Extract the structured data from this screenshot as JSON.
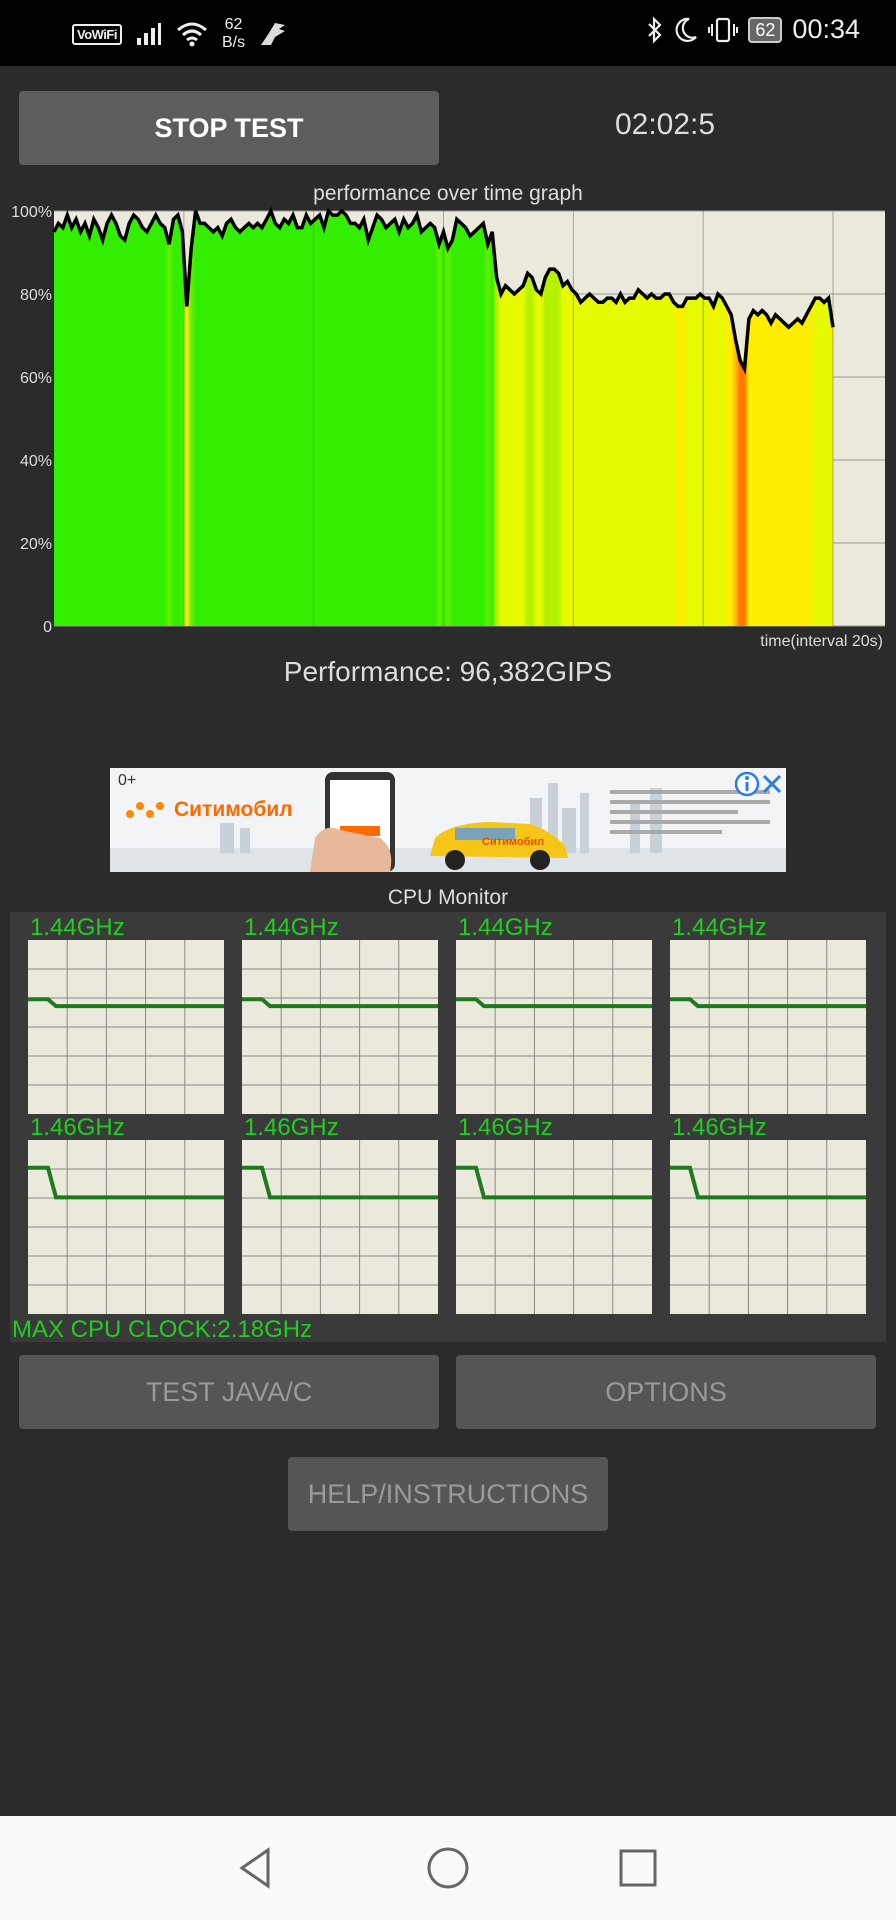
{
  "status_bar": {
    "vowifi": "VoWiFi",
    "net_speed_value": "62",
    "net_speed_unit": "B/s",
    "battery": "62",
    "time": "00:34"
  },
  "toolbar": {
    "stop_label": "STOP TEST",
    "elapsed": "02:02:5"
  },
  "graph": {
    "title": "performance over time graph",
    "y_ticks": [
      "100%",
      "80%",
      "60%",
      "40%",
      "20%",
      "0"
    ],
    "x_label": "time(interval 20s)"
  },
  "performance_text": "Performance: 96,382GIPS",
  "ad": {
    "age": "0+",
    "brand": "Ситимобил",
    "car_brand": "Ситимобил",
    "info_icon": "info-icon",
    "close_icon": "close-icon"
  },
  "cpu_monitor": {
    "title": "CPU Monitor",
    "cores": [
      {
        "freq": "1.44GHz",
        "history": [
          0.66,
          0.66,
          0.62,
          0.62,
          0.62,
          0.62
        ]
      },
      {
        "freq": "1.44GHz",
        "history": [
          0.66,
          0.66,
          0.62,
          0.62,
          0.62,
          0.62
        ]
      },
      {
        "freq": "1.44GHz",
        "history": [
          0.66,
          0.66,
          0.62,
          0.62,
          0.62,
          0.62
        ]
      },
      {
        "freq": "1.44GHz",
        "history": [
          0.66,
          0.66,
          0.62,
          0.62,
          0.62,
          0.62
        ]
      },
      {
        "freq": "1.46GHz",
        "history": [
          0.84,
          0.84,
          0.67,
          0.67,
          0.67,
          0.67
        ]
      },
      {
        "freq": "1.46GHz",
        "history": [
          0.84,
          0.84,
          0.67,
          0.67,
          0.67,
          0.67
        ]
      },
      {
        "freq": "1.46GHz",
        "history": [
          0.84,
          0.84,
          0.67,
          0.67,
          0.67,
          0.67
        ]
      },
      {
        "freq": "1.46GHz",
        "history": [
          0.84,
          0.84,
          0.67,
          0.67,
          0.67,
          0.67
        ]
      }
    ],
    "max_clock": "MAX CPU CLOCK:2.18GHz"
  },
  "buttons": {
    "test_java": "TEST JAVA/C",
    "options": "OPTIONS",
    "help": "HELP/INSTRUCTIONS"
  },
  "nav_bar": {
    "back": "back-icon",
    "home": "home-icon",
    "recents": "recents-icon"
  },
  "colors": {
    "good": "#33ee00",
    "mid": "#eeff00",
    "bad": "#ff7700",
    "cpu_line": "#1e7a1e",
    "label_green": "#22cc22"
  },
  "chart_data": {
    "type": "area",
    "title": "performance over time graph",
    "xlabel": "time(interval 20s)",
    "ylabel": "",
    "ylim": [
      0,
      100
    ],
    "y_ticks": [
      "100%",
      "80%",
      "60%",
      "40%",
      "20%",
      "0"
    ],
    "grid": true,
    "values": [
      95,
      97,
      96,
      99,
      96,
      98,
      95,
      97,
      94,
      98,
      96,
      93,
      97,
      99,
      97,
      94,
      93,
      97,
      99,
      98,
      96,
      95,
      97,
      99,
      97,
      96,
      92,
      98,
      99,
      95,
      77,
      91,
      100,
      97,
      97,
      96,
      95,
      96,
      94,
      97,
      98,
      96,
      95,
      96,
      97,
      96,
      97,
      96,
      98,
      100,
      97,
      96,
      98,
      97,
      99,
      96,
      96,
      99,
      97,
      98,
      99,
      96,
      100,
      99,
      99,
      100,
      99,
      97,
      97,
      96,
      98,
      93,
      96,
      99,
      98,
      96,
      97,
      98,
      95,
      98,
      96,
      97,
      99,
      95,
      96,
      97,
      96,
      92,
      95,
      91,
      93,
      98,
      97,
      96,
      94,
      95,
      96,
      97,
      92,
      95,
      84,
      80,
      82,
      81,
      80,
      81,
      82,
      85,
      84,
      81,
      80,
      84,
      86,
      86,
      85,
      82,
      83,
      81,
      80,
      78,
      79,
      80,
      79,
      78,
      78,
      79,
      79,
      78,
      80,
      78,
      79,
      79,
      81,
      80,
      79,
      80,
      79,
      79,
      80,
      80,
      78,
      77,
      77,
      79,
      79,
      79,
      80,
      79,
      79,
      77,
      80,
      79,
      77,
      75,
      69,
      64,
      62,
      74,
      76,
      75,
      76,
      75,
      73,
      75,
      74,
      73,
      72,
      73,
      74,
      73,
      75,
      77,
      79,
      79,
      78,
      79,
      72
    ]
  }
}
